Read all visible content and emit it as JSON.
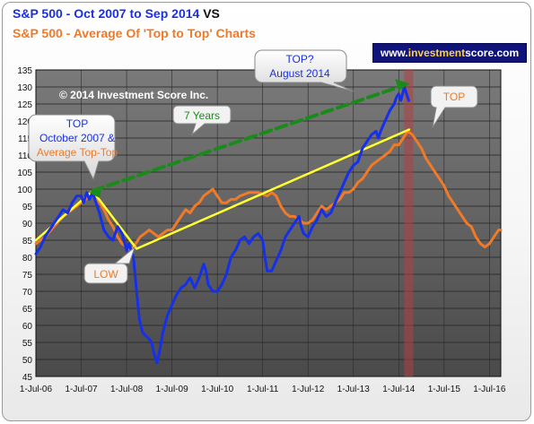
{
  "title": {
    "line1_series": "S&P 500",
    "line1_desc": " - Oct 2007 to Sep 2014",
    "line1_suffix": " VS",
    "line2": "S&P 500  - Average Of 'Top to Top' Charts"
  },
  "website": {
    "prefix": "www.",
    "brand": "investment",
    "suffix": "score.com"
  },
  "copyright": "© 2014 Investment Score Inc.",
  "colors": {
    "sp500": "#1530e8",
    "average": "#f07a28",
    "trend": "#ffff33",
    "dashed": "#1a8a1a",
    "plot_bg": "#5e5e5e",
    "highlight": "#b04040"
  },
  "callouts": {
    "top_left_line1": "TOP",
    "top_left_line2": "October 2007 &",
    "top_left_line3": "Average Top-Top",
    "top_right_line1": "TOP?",
    "top_right_line2": "August 2014",
    "years": "7 Years",
    "low": "LOW",
    "top": "TOP"
  },
  "chart_data": {
    "type": "line",
    "title": "S&P 500 - Oct 2007 to Sep 2014 VS S&P 500 - Average Of 'Top to Top' Charts",
    "xlabel": "",
    "ylabel": "",
    "x_ticks": [
      "1-Jul-06",
      "1-Jul-07",
      "1-Jul-08",
      "1-Jul-09",
      "1-Jul-10",
      "1-Jul-11",
      "1-Jul-12",
      "1-Jul-13",
      "1-Jul-14",
      "1-Jul-15",
      "1-Jul-16"
    ],
    "xlim": [
      2006.5,
      2016.75
    ],
    "ylim": [
      45,
      135
    ],
    "y_ticks": [
      45,
      50,
      55,
      60,
      65,
      70,
      75,
      80,
      85,
      90,
      95,
      100,
      105,
      110,
      115,
      120,
      125,
      130,
      135
    ],
    "grid": true,
    "series": [
      {
        "name": "S&P 500",
        "color": "#1530e8",
        "points": [
          [
            2006.5,
            81
          ],
          [
            2006.6,
            83
          ],
          [
            2006.7,
            86
          ],
          [
            2006.8,
            88
          ],
          [
            2006.9,
            90
          ],
          [
            2007.0,
            92
          ],
          [
            2007.1,
            94
          ],
          [
            2007.2,
            93
          ],
          [
            2007.3,
            96
          ],
          [
            2007.4,
            98
          ],
          [
            2007.5,
            98
          ],
          [
            2007.55,
            96
          ],
          [
            2007.62,
            99
          ],
          [
            2007.68,
            97
          ],
          [
            2007.75,
            99
          ],
          [
            2007.8,
            97
          ],
          [
            2007.9,
            93
          ],
          [
            2008.0,
            88
          ],
          [
            2008.1,
            86
          ],
          [
            2008.2,
            85
          ],
          [
            2008.3,
            89
          ],
          [
            2008.4,
            87
          ],
          [
            2008.5,
            82
          ],
          [
            2008.55,
            84
          ],
          [
            2008.6,
            82
          ],
          [
            2008.65,
            80
          ],
          [
            2008.72,
            70
          ],
          [
            2008.78,
            62
          ],
          [
            2008.85,
            58
          ],
          [
            2008.92,
            57
          ],
          [
            2009.0,
            56
          ],
          [
            2009.05,
            55
          ],
          [
            2009.1,
            52
          ],
          [
            2009.17,
            49
          ],
          [
            2009.22,
            52
          ],
          [
            2009.3,
            58
          ],
          [
            2009.4,
            63
          ],
          [
            2009.5,
            66
          ],
          [
            2009.6,
            69
          ],
          [
            2009.7,
            71
          ],
          [
            2009.8,
            72
          ],
          [
            2009.9,
            74
          ],
          [
            2010.0,
            71
          ],
          [
            2010.1,
            74
          ],
          [
            2010.2,
            78
          ],
          [
            2010.25,
            76
          ],
          [
            2010.3,
            72
          ],
          [
            2010.4,
            70
          ],
          [
            2010.5,
            70
          ],
          [
            2010.6,
            72
          ],
          [
            2010.7,
            75
          ],
          [
            2010.8,
            80
          ],
          [
            2010.9,
            82
          ],
          [
            2011.0,
            85
          ],
          [
            2011.1,
            86
          ],
          [
            2011.2,
            84
          ],
          [
            2011.3,
            86
          ],
          [
            2011.4,
            87
          ],
          [
            2011.5,
            85
          ],
          [
            2011.55,
            80
          ],
          [
            2011.6,
            76
          ],
          [
            2011.7,
            76
          ],
          [
            2011.8,
            79
          ],
          [
            2011.9,
            82
          ],
          [
            2012.0,
            86
          ],
          [
            2012.1,
            88
          ],
          [
            2012.2,
            90
          ],
          [
            2012.3,
            92
          ],
          [
            2012.35,
            89
          ],
          [
            2012.4,
            87
          ],
          [
            2012.5,
            86
          ],
          [
            2012.6,
            89
          ],
          [
            2012.7,
            91
          ],
          [
            2012.8,
            94
          ],
          [
            2012.9,
            92
          ],
          [
            2013.0,
            93
          ],
          [
            2013.1,
            96
          ],
          [
            2013.2,
            99
          ],
          [
            2013.3,
            102
          ],
          [
            2013.4,
            105
          ],
          [
            2013.5,
            107
          ],
          [
            2013.6,
            108
          ],
          [
            2013.7,
            112
          ],
          [
            2013.8,
            114
          ],
          [
            2013.9,
            116
          ],
          [
            2014.0,
            117
          ],
          [
            2014.05,
            115
          ],
          [
            2014.1,
            117
          ],
          [
            2014.2,
            120
          ],
          [
            2014.3,
            123
          ],
          [
            2014.4,
            125
          ],
          [
            2014.45,
            127
          ],
          [
            2014.5,
            128
          ],
          [
            2014.55,
            126
          ],
          [
            2014.62,
            130
          ],
          [
            2014.67,
            128
          ],
          [
            2014.72,
            126
          ]
        ]
      },
      {
        "name": "Average Of 'Top to Top' Charts",
        "color": "#f07a28",
        "points": [
          [
            2006.5,
            84
          ],
          [
            2006.7,
            86
          ],
          [
            2006.9,
            89
          ],
          [
            2007.1,
            92
          ],
          [
            2007.3,
            94
          ],
          [
            2007.5,
            96
          ],
          [
            2007.6,
            97
          ],
          [
            2007.75,
            99
          ],
          [
            2007.9,
            96
          ],
          [
            2008.0,
            94
          ],
          [
            2008.1,
            91
          ],
          [
            2008.2,
            89
          ],
          [
            2008.3,
            86
          ],
          [
            2008.4,
            84
          ],
          [
            2008.5,
            83
          ],
          [
            2008.6,
            82
          ],
          [
            2008.7,
            84
          ],
          [
            2008.8,
            86
          ],
          [
            2008.9,
            87
          ],
          [
            2009.0,
            88
          ],
          [
            2009.1,
            87
          ],
          [
            2009.2,
            86
          ],
          [
            2009.3,
            87
          ],
          [
            2009.4,
            88
          ],
          [
            2009.5,
            88
          ],
          [
            2009.6,
            90
          ],
          [
            2009.7,
            92
          ],
          [
            2009.8,
            94
          ],
          [
            2009.9,
            93
          ],
          [
            2010.0,
            95
          ],
          [
            2010.1,
            96
          ],
          [
            2010.2,
            98
          ],
          [
            2010.3,
            99
          ],
          [
            2010.4,
            100
          ],
          [
            2010.5,
            98
          ],
          [
            2010.6,
            96
          ],
          [
            2010.7,
            96
          ],
          [
            2010.8,
            97
          ],
          [
            2010.9,
            97
          ],
          [
            2011.0,
            98
          ],
          [
            2011.2,
            99
          ],
          [
            2011.4,
            99
          ],
          [
            2011.6,
            98
          ],
          [
            2011.7,
            99
          ],
          [
            2011.8,
            98
          ],
          [
            2011.9,
            95
          ],
          [
            2012.0,
            93
          ],
          [
            2012.1,
            92
          ],
          [
            2012.2,
            92
          ],
          [
            2012.3,
            91
          ],
          [
            2012.4,
            90
          ],
          [
            2012.5,
            90
          ],
          [
            2012.6,
            91
          ],
          [
            2012.7,
            93
          ],
          [
            2012.8,
            95
          ],
          [
            2012.9,
            94
          ],
          [
            2013.0,
            95
          ],
          [
            2013.1,
            96
          ],
          [
            2013.2,
            97
          ],
          [
            2013.3,
            99
          ],
          [
            2013.4,
            99
          ],
          [
            2013.5,
            100
          ],
          [
            2013.6,
            102
          ],
          [
            2013.7,
            103
          ],
          [
            2013.8,
            105
          ],
          [
            2013.9,
            107
          ],
          [
            2014.0,
            108
          ],
          [
            2014.1,
            109
          ],
          [
            2014.2,
            110
          ],
          [
            2014.3,
            111
          ],
          [
            2014.4,
            113
          ],
          [
            2014.5,
            113
          ],
          [
            2014.6,
            115
          ],
          [
            2014.7,
            117
          ],
          [
            2014.8,
            116
          ],
          [
            2014.9,
            114
          ],
          [
            2015.0,
            112
          ],
          [
            2015.1,
            109
          ],
          [
            2015.2,
            107
          ],
          [
            2015.3,
            105
          ],
          [
            2015.4,
            103
          ],
          [
            2015.5,
            101
          ],
          [
            2015.6,
            98
          ],
          [
            2015.7,
            96
          ],
          [
            2015.8,
            94
          ],
          [
            2015.9,
            92
          ],
          [
            2016.0,
            90
          ],
          [
            2016.1,
            89
          ],
          [
            2016.2,
            86
          ],
          [
            2016.3,
            84
          ],
          [
            2016.4,
            83
          ],
          [
            2016.5,
            84
          ],
          [
            2016.6,
            86
          ],
          [
            2016.7,
            88
          ],
          [
            2016.75,
            88
          ]
        ]
      },
      {
        "name": "",
        "color": "#ffff33",
        "points": [
          [
            2006.5,
            85
          ],
          [
            2007.75,
            99.5
          ],
          [
            2008.72,
            82.5
          ],
          [
            2014.73,
            117.5
          ]
        ]
      },
      {
        "name": "",
        "color": "#1a8a1a",
        "points": [
          [
            2007.75,
            99.5
          ],
          [
            2014.62,
            130.5
          ]
        ]
      }
    ],
    "highlight_band": [
      2014.62,
      2014.82
    ]
  }
}
